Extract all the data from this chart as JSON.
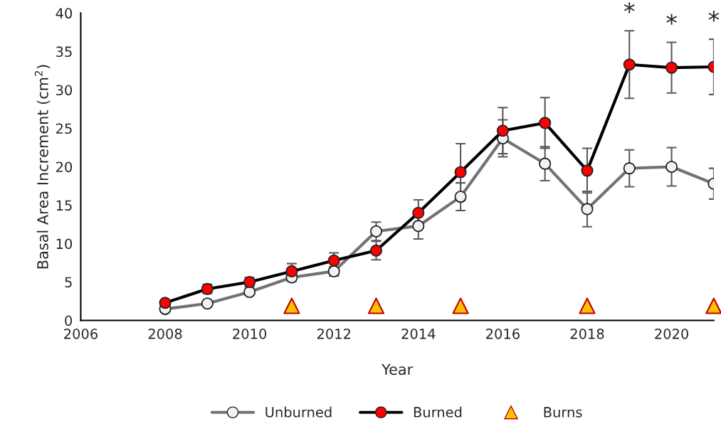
{
  "chart_data": {
    "type": "line",
    "xlabel": "Year",
    "ylabel": "Basal Area Increment (cm$^{2}$)",
    "xlim": [
      2006,
      2021
    ],
    "xticks": [
      2006,
      2008,
      2010,
      2012,
      2014,
      2016,
      2018,
      2020
    ],
    "ylim": [
      0,
      40
    ],
    "yticks": [
      0,
      5,
      10,
      15,
      20,
      25,
      30,
      35,
      40
    ],
    "grid": false,
    "legend": "bottom",
    "marker": "circle",
    "line_style": "solid",
    "series": [
      {
        "name": "Unburned",
        "color": "#767171",
        "x": [
          2008,
          2009,
          2010,
          2011,
          2012,
          2013,
          2014,
          2015,
          2016,
          2017,
          2018,
          2019,
          2020,
          2021
        ],
        "values": [
          1.5,
          2.2,
          3.7,
          5.6,
          6.4,
          11.6,
          12.3,
          16.1,
          23.7,
          20.4,
          14.5,
          19.8,
          20.0,
          17.8
        ],
        "errors": [
          null,
          null,
          0.4,
          0.5,
          0.6,
          1.2,
          1.7,
          1.8,
          2.4,
          2.2,
          2.3,
          2.4,
          2.5,
          2.0
        ]
      },
      {
        "name": "Burned",
        "color": "#ff0000",
        "x": [
          2008,
          2009,
          2010,
          2011,
          2012,
          2013,
          2014,
          2015,
          2016,
          2017,
          2018,
          2019,
          2020,
          2021
        ],
        "values": [
          2.3,
          4.1,
          5.0,
          6.4,
          7.8,
          9.1,
          14.0,
          19.3,
          24.7,
          25.7,
          19.5,
          33.3,
          32.9,
          33.0
        ],
        "errors": [
          null,
          0.6,
          0.6,
          1.0,
          1.0,
          1.2,
          1.7,
          3.7,
          3.0,
          3.3,
          2.9,
          4.4,
          3.3,
          3.6
        ]
      },
      {
        "name": "Burns",
        "type": "scatter",
        "marker": "triangle",
        "color": "#ffc000",
        "x": [
          2011,
          2013,
          2015,
          2018,
          2021
        ],
        "values": [
          1.9,
          1.9,
          1.9,
          1.9,
          1.9
        ]
      }
    ],
    "annotations": [
      {
        "text": "*",
        "x": 2019,
        "y": 33.3
      },
      {
        "text": "*",
        "x": 2020,
        "y": 32.9
      },
      {
        "text": "*",
        "x": 2021,
        "y": 33.0
      }
    ]
  }
}
